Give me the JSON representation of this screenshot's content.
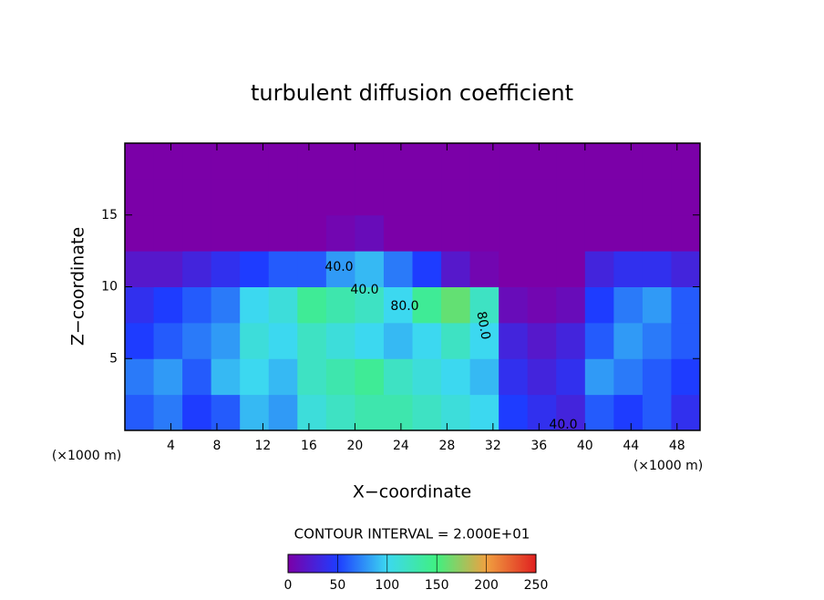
{
  "chart_data": {
    "type": "heatmap",
    "title": "turbulent diffusion coefficient",
    "xlabel": "X−coordinate",
    "ylabel": "Z−coordinate",
    "x_unit": "(×1000 m)",
    "x_unit_right": "(×1000 m)",
    "contour_interval": "CONTOUR INTERVAL = 2.000E+01",
    "xlim": [
      0,
      50
    ],
    "ylim": [
      0,
      20
    ],
    "xticks": [
      4,
      8,
      12,
      16,
      20,
      24,
      28,
      32,
      36,
      40,
      44,
      48
    ],
    "yticks": [
      5,
      10,
      15
    ],
    "clim": [
      0,
      250
    ],
    "cticks": [
      0,
      50,
      100,
      150,
      200,
      250
    ],
    "colormap": [
      "#7b00a8",
      "#1e3cff",
      "#3cd8f0",
      "#40f080",
      "#f0a040",
      "#e02020"
    ],
    "x_edges": [
      0,
      2.5,
      5,
      7.5,
      10,
      12.5,
      15,
      17.5,
      20,
      22.5,
      25,
      27.5,
      30,
      32.5,
      35,
      37.5,
      40,
      42.5,
      45,
      47.5,
      50
    ],
    "y_edges": [
      0,
      2.5,
      5,
      7.5,
      10,
      12.5,
      15,
      17.5,
      20
    ],
    "z": [
      [
        60,
        70,
        50,
        60,
        90,
        80,
        110,
        120,
        130,
        130,
        120,
        110,
        100,
        50,
        40,
        30,
        60,
        50,
        60,
        40
      ],
      [
        70,
        80,
        60,
        90,
        100,
        90,
        120,
        130,
        140,
        120,
        110,
        100,
        90,
        40,
        30,
        40,
        80,
        70,
        60,
        50
      ],
      [
        50,
        60,
        70,
        80,
        110,
        100,
        120,
        110,
        100,
        90,
        100,
        120,
        100,
        30,
        20,
        30,
        60,
        80,
        70,
        60
      ],
      [
        40,
        50,
        60,
        70,
        100,
        110,
        140,
        130,
        120,
        100,
        140,
        160,
        120,
        10,
        5,
        10,
        50,
        70,
        80,
        60
      ],
      [
        20,
        20,
        30,
        40,
        50,
        60,
        60,
        80,
        90,
        70,
        50,
        20,
        5,
        0,
        0,
        0,
        30,
        40,
        40,
        30
      ],
      [
        0,
        0,
        0,
        0,
        0,
        0,
        0,
        5,
        10,
        0,
        0,
        0,
        0,
        0,
        0,
        0,
        0,
        0,
        0,
        0
      ],
      [
        0,
        0,
        0,
        0,
        0,
        0,
        0,
        0,
        0,
        0,
        0,
        0,
        0,
        0,
        0,
        0,
        0,
        0,
        0,
        0
      ],
      [
        0,
        0,
        0,
        0,
        0,
        0,
        0,
        0,
        0,
        0,
        0,
        0,
        0,
        0,
        0,
        0,
        0,
        0,
        0,
        0
      ]
    ],
    "contour_labels": [
      {
        "value": 40,
        "label": "40.0"
      },
      {
        "value": 40,
        "label": "40.0"
      },
      {
        "value": 80,
        "label": "80.0"
      },
      {
        "value": 80,
        "label": "80.0"
      },
      {
        "value": 40,
        "label": "40.0"
      }
    ]
  }
}
